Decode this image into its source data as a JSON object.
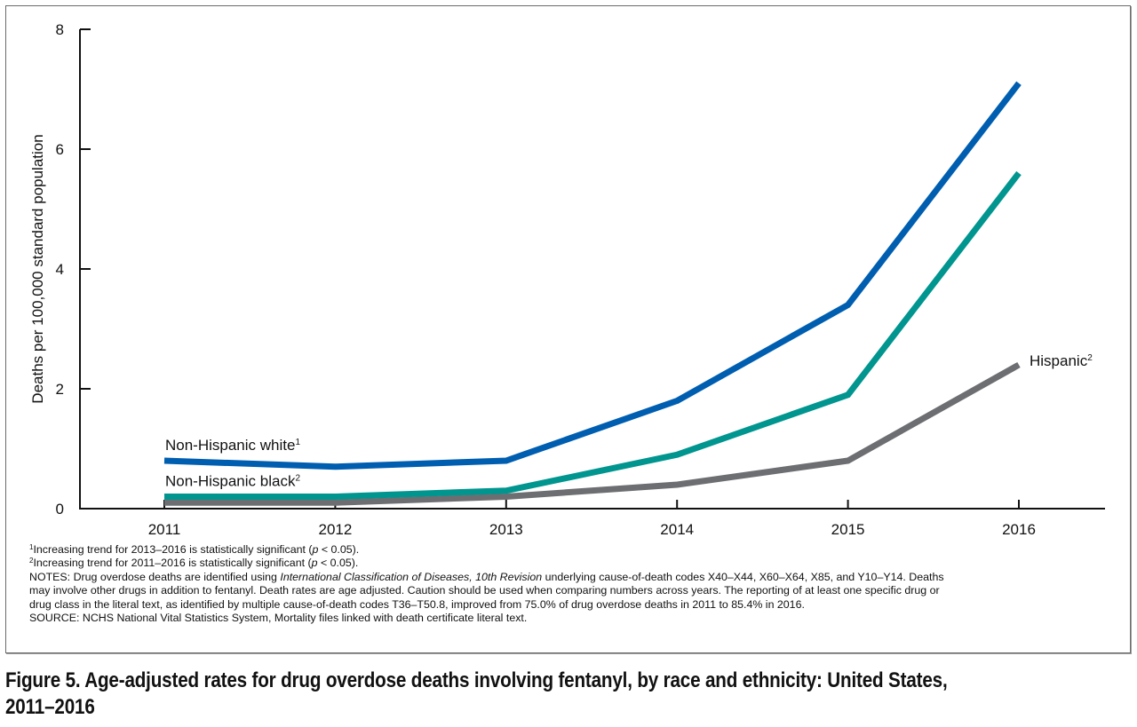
{
  "figure": {
    "caption": "Figure 5. Age-adjusted rates for drug overdose deaths involving fentanyl, by race and ethnicity: United States, 2011–2016"
  },
  "chart_data": {
    "type": "line",
    "title": "Age-adjusted rates for drug overdose deaths involving fentanyl, by race and ethnicity: United States, 2011–2016",
    "xlabel": "",
    "ylabel": "Deaths per 100,000 standard population",
    "x": [
      "2011",
      "2012",
      "2013",
      "2014",
      "2015",
      "2016"
    ],
    "ylim": [
      0,
      8
    ],
    "yticks": [
      "0",
      "2",
      "4",
      "6",
      "8"
    ],
    "grid": false,
    "legend": "inline-labels",
    "series": [
      {
        "name": "Non-Hispanic white",
        "footnote": "1",
        "color": "#005eb0",
        "label_position": "left",
        "values": [
          0.8,
          0.7,
          0.8,
          1.8,
          3.4,
          7.1
        ]
      },
      {
        "name": "Non-Hispanic black",
        "footnote": "2",
        "color": "#00958f",
        "label_position": "left",
        "values": [
          0.2,
          0.2,
          0.3,
          0.9,
          1.9,
          5.6
        ]
      },
      {
        "name": "Hispanic",
        "footnote": "2",
        "color": "#6d6e71",
        "label_position": "right",
        "values": [
          0.1,
          0.1,
          0.2,
          0.4,
          0.8,
          2.4
        ]
      }
    ]
  },
  "notes": {
    "footnote1": {
      "marker": "1",
      "text": "Increasing trend for 2013–2016 is statistically significant (",
      "p": "p",
      "tail": " < 0.05)."
    },
    "footnote2": {
      "marker": "2",
      "text": "Increasing trend for 2011–2016 is statistically significant (",
      "p": "p",
      "tail": " < 0.05)."
    },
    "notes_line1_a": "NOTES: Drug overdose deaths are identified using ",
    "notes_line1_italic": "International Classification of Diseases, 10th Revision",
    "notes_line1_b": " underlying cause-of-death codes X40–X44, X60–X64, X85, and Y10–Y14. Deaths",
    "notes_line2": "may involve other drugs in addition to fentanyl. Death rates are age adjusted. Caution should be used when comparing numbers across years. The reporting of at least one specific drug or",
    "notes_line3": "drug class in the literal text, as identified by multiple cause-of-death codes T36–T50.8, improved from 75.0% of drug overdose deaths in 2011 to 85.4% in 2016.",
    "source": "SOURCE: NCHS National Vital Statistics System, Mortality files linked with death certificate literal text."
  }
}
